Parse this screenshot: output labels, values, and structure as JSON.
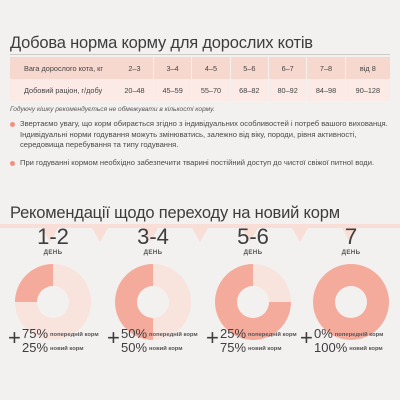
{
  "norms": {
    "title": "Добова норма корму для дорослих котів",
    "header_label": "Вага дорослого кота, кг",
    "weights": [
      "2–3",
      "3–4",
      "4–5",
      "5–6",
      "6–7",
      "7–8",
      "від 8"
    ],
    "value_label": "Добовий раціон, г/добу",
    "rations": [
      "20–48",
      "45–59",
      "55–70",
      "68–82",
      "80–92",
      "84–98",
      "90–128"
    ],
    "note": "Годуючу кішку рекомендується не обмежувати в кількості корму."
  },
  "bullets": [
    "Звертаємо увагу, що корм обирається згідно з індивідуальних особливостей і потреб вашого вихованця. Індивідуальні норми годування можуть змінюватись, залежно від віку, породи, рівня активності, середовища перебування та типу годування.",
    "При годуванні кормом необхідно забезпечити тварині постійний доступ до чистої свіжої питної води."
  ],
  "transition": {
    "title": "Рекомендації щодо переходу на новий корм",
    "colors": {
      "old": "#f8e3dd",
      "new": "#f4ab9c",
      "center": "#f3f1ef"
    },
    "stages": [
      {
        "days": "1-2",
        "day_label": "ДЕНЬ",
        "old_pct": "75%",
        "old_label": "попередній корм",
        "new_pct": "25%",
        "new_label": "новий корм",
        "new_fraction": 0.25
      },
      {
        "days": "3-4",
        "day_label": "ДЕНЬ",
        "old_pct": "50%",
        "old_label": "попередній корм",
        "new_pct": "50%",
        "new_label": "новий корм",
        "new_fraction": 0.5
      },
      {
        "days": "5-6",
        "day_label": "ДЕНЬ",
        "old_pct": "25%",
        "old_label": "попередній корм",
        "new_pct": "75%",
        "new_label": "новий корм",
        "new_fraction": 0.75
      },
      {
        "days": "7",
        "day_label": "ДЕНЬ",
        "old_pct": "0%",
        "old_label": "попередній корм",
        "new_pct": "100%",
        "new_label": "новий корм",
        "new_fraction": 1.0
      }
    ]
  }
}
